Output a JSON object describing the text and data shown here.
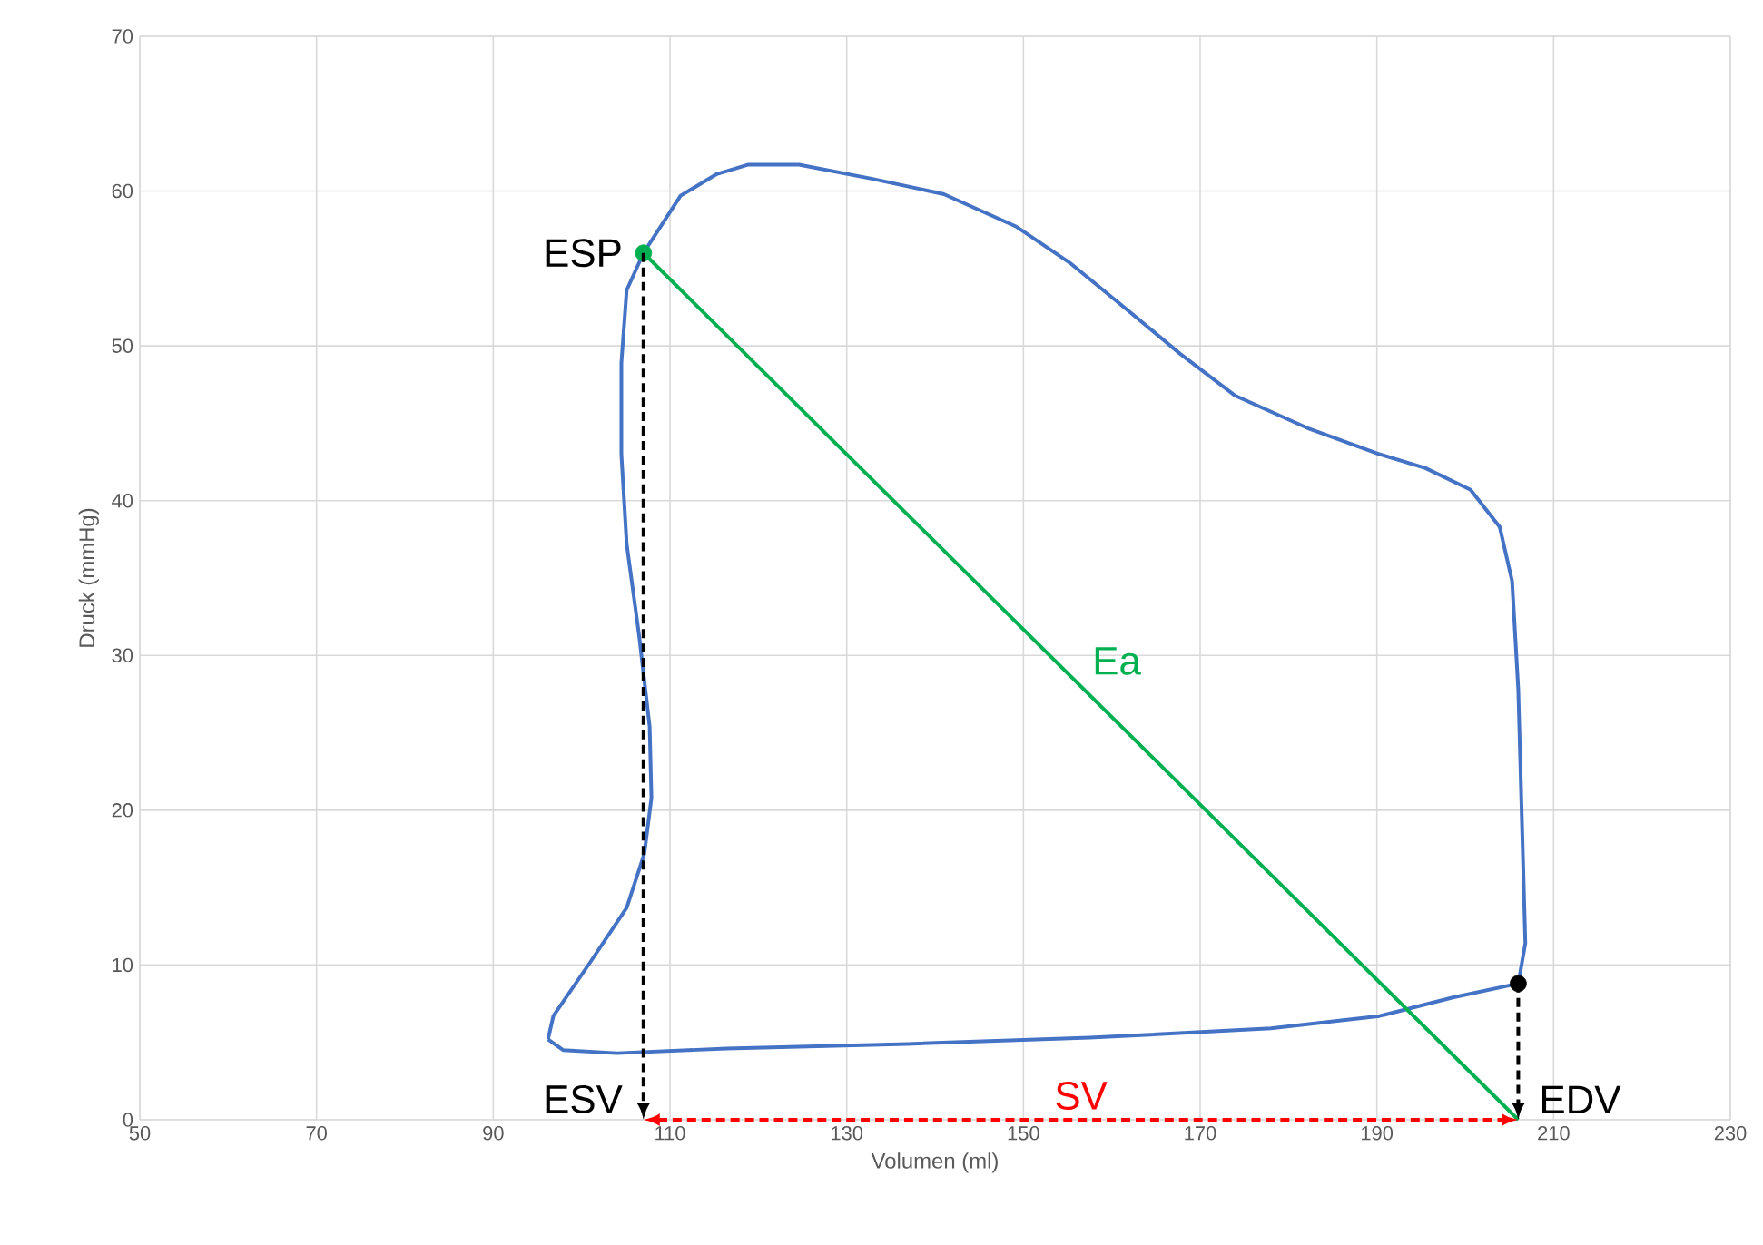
{
  "chart_data": {
    "type": "line",
    "xlabel": "Volumen (ml)",
    "ylabel": "Druck (mmHg)",
    "xlim": [
      50,
      230
    ],
    "xticks": [
      50,
      70,
      90,
      110,
      130,
      150,
      170,
      190,
      210,
      230
    ],
    "ylim": [
      0,
      70
    ],
    "yticks": [
      0,
      10,
      20,
      30,
      40,
      50,
      60,
      70
    ],
    "grid": true,
    "series": [
      {
        "color": "#4472c4",
        "line_style": "solid",
        "x": [
          206,
          206.8,
          206.4,
          206,
          205.3,
          203.9,
          200.6,
          195.5,
          190.3,
          182.1,
          173.9,
          167.7,
          161.6,
          155.4,
          149.2,
          141,
          132.8,
          124.6,
          118.8,
          115.3,
          111.2,
          107
        ],
        "values": [
          8.8,
          11.4,
          19.6,
          27.8,
          34.8,
          38.3,
          40.7,
          42.1,
          43,
          44.7,
          46.8,
          49.5,
          52.4,
          55.3,
          57.7,
          59.8,
          60.8,
          61.7,
          61.7,
          61.1,
          59.7,
          56
        ]
      },
      {
        "color": "#4472c4",
        "line_style": "solid",
        "x": [
          107,
          105.1,
          104.5,
          104.5,
          105.1,
          106.5,
          107.7,
          107.9,
          107.1,
          105.1,
          101,
          96.8,
          96.2
        ],
        "values": [
          56,
          53.6,
          48.9,
          43,
          37.2,
          31.3,
          25.4,
          20.8,
          17.2,
          13.7,
          10.2,
          6.7,
          5.2
        ]
      },
      {
        "color": "#4472c4",
        "line_style": "solid",
        "x": [
          96.2,
          97.9,
          104,
          116.4,
          136.9,
          157.5,
          178,
          190.3,
          198.6,
          206
        ],
        "values": [
          5.2,
          4.5,
          4.3,
          4.6,
          4.9,
          5.3,
          5.9,
          6.7,
          7.9,
          8.8
        ]
      },
      {
        "name": "Ea",
        "color": "#00b050",
        "line_style": "solid",
        "x": [
          107,
          206
        ],
        "values": [
          56,
          0
        ]
      },
      {
        "type": "scatter",
        "color": "#00b050",
        "x": [
          107
        ],
        "values": [
          56
        ]
      },
      {
        "type": "scatter",
        "color": "#000000",
        "x": [
          206
        ],
        "values": [
          8.8
        ]
      }
    ],
    "annotations": [
      {
        "text": "ESP",
        "x": 107,
        "y": 56
      },
      "ESV",
      {
        "text": "EDV",
        "x": 206,
        "y": 0
      },
      "SV"
    ]
  }
}
